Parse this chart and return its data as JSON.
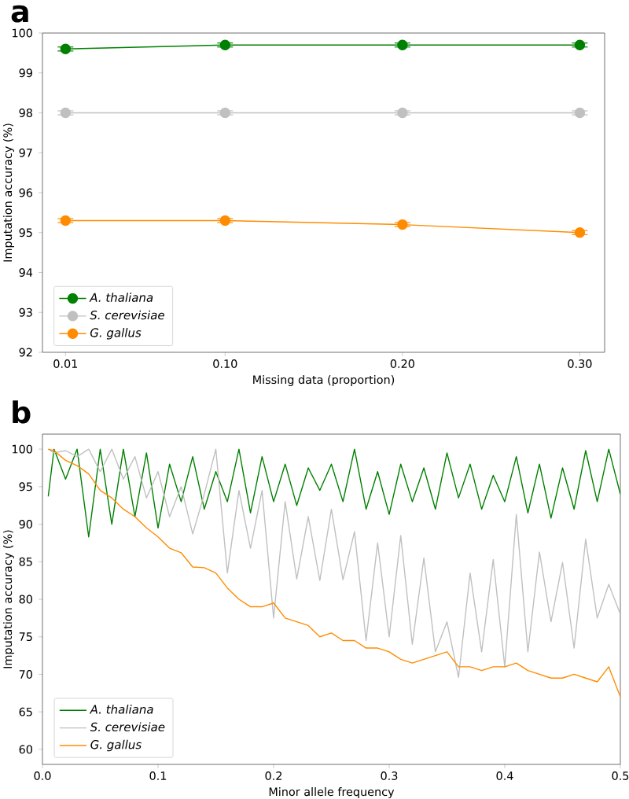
{
  "chart_data": [
    {
      "type": "line",
      "title": "a",
      "xlabel": "Missing data (proportion)",
      "ylabel": "Imputation accuracy (%)",
      "x": [
        0.01,
        0.1,
        0.2,
        0.3
      ],
      "xlim": [
        -0.003,
        0.314
      ],
      "xticks": [
        {
          "value": 0.01,
          "label": "0.01"
        },
        {
          "value": 0.1,
          "label": "0.10"
        },
        {
          "value": 0.2,
          "label": "0.20"
        },
        {
          "value": 0.3,
          "label": "0.30"
        }
      ],
      "ylim": [
        92,
        100
      ],
      "yticks": [
        92,
        93,
        94,
        95,
        96,
        97,
        98,
        99,
        100
      ],
      "marker": "circle",
      "legend": "bottom left",
      "series": [
        {
          "name": "A. thaliana",
          "color": "#008000",
          "values": [
            99.6,
            99.7,
            99.7,
            99.7
          ],
          "errors": [
            0.05,
            0.05,
            0.05,
            0.05
          ]
        },
        {
          "name": "S. cerevisiae",
          "color": "#c0c0c0",
          "values": [
            98.0,
            98.0,
            98.0,
            98.0
          ],
          "errors": [
            0.05,
            0.05,
            0.05,
            0.05
          ]
        },
        {
          "name": "G. gallus",
          "color": "#ff8c00",
          "values": [
            95.3,
            95.3,
            95.2,
            95.0
          ],
          "errors": [
            0.05,
            0.05,
            0.05,
            0.05
          ]
        }
      ]
    },
    {
      "type": "line",
      "title": "b",
      "xlabel": "Minor allele frequency",
      "ylabel": "Imputation accuracy (%)",
      "x": [
        0.005,
        0.01,
        0.02,
        0.03,
        0.04,
        0.05,
        0.06,
        0.07,
        0.08,
        0.09,
        0.1,
        0.11,
        0.12,
        0.13,
        0.14,
        0.15,
        0.16,
        0.17,
        0.18,
        0.19,
        0.2,
        0.21,
        0.22,
        0.23,
        0.24,
        0.25,
        0.26,
        0.27,
        0.28,
        0.29,
        0.3,
        0.31,
        0.32,
        0.33,
        0.34,
        0.35,
        0.36,
        0.37,
        0.38,
        0.39,
        0.4,
        0.41,
        0.42,
        0.43,
        0.44,
        0.45,
        0.46,
        0.47,
        0.48,
        0.49,
        0.5
      ],
      "xlim": [
        0,
        0.5
      ],
      "xticks": [
        {
          "value": 0,
          "label": "0.0"
        },
        0.1,
        0.2,
        0.3,
        0.4,
        0.5
      ],
      "ylim": [
        58,
        102
      ],
      "yticks": [
        60,
        65,
        70,
        75,
        80,
        85,
        90,
        95,
        100
      ],
      "legend": "bottom left",
      "series": [
        {
          "name": "A. thaliana",
          "color": "#008000",
          "values": [
            93.7,
            100,
            96,
            100,
            88.3,
            100,
            90,
            100,
            91,
            99.5,
            89.5,
            98,
            93,
            99,
            92,
            97,
            93,
            100,
            91.5,
            99,
            93,
            98,
            92.5,
            97.5,
            94.5,
            98,
            93,
            100,
            92,
            97,
            91.3,
            98,
            93,
            97.5,
            92,
            99.5,
            93.5,
            98,
            92,
            96.5,
            93,
            99,
            91.5,
            98,
            90.8,
            97.5,
            92,
            99.8,
            93,
            100,
            94
          ]
        },
        {
          "name": "S. cerevisiae",
          "color": "#c0c0c0",
          "values": [
            100,
            99.5,
            99.8,
            99,
            100,
            97,
            100,
            96,
            99,
            93.5,
            97,
            91,
            95,
            88.7,
            94,
            100,
            83.5,
            94.5,
            86.8,
            94.5,
            77.5,
            93,
            82.7,
            91,
            82.5,
            92,
            82.6,
            89,
            74.5,
            87.5,
            75,
            88.5,
            74,
            85.5,
            73,
            77,
            69.6,
            83.5,
            73,
            85.3,
            71,
            91.3,
            73,
            86.3,
            77,
            84.9,
            73.5,
            88,
            77.5,
            82,
            78
          ]
        },
        {
          "name": "G. gallus",
          "color": "#ff8c00",
          "values": [
            100,
            99.8,
            98.5,
            97.8,
            96.7,
            94.5,
            93.5,
            92,
            91,
            89.5,
            88.3,
            86.8,
            86.2,
            84.3,
            84.2,
            83.5,
            81.5,
            80,
            79,
            79,
            79.5,
            77.5,
            77,
            76.5,
            75,
            75.5,
            74.5,
            74.5,
            73.5,
            73.5,
            73,
            72,
            71.5,
            72,
            72.5,
            73,
            71,
            71,
            70.5,
            71,
            71,
            71.5,
            70.5,
            70,
            69.5,
            69.5,
            70,
            69.5,
            69,
            71,
            67
          ]
        }
      ]
    }
  ]
}
